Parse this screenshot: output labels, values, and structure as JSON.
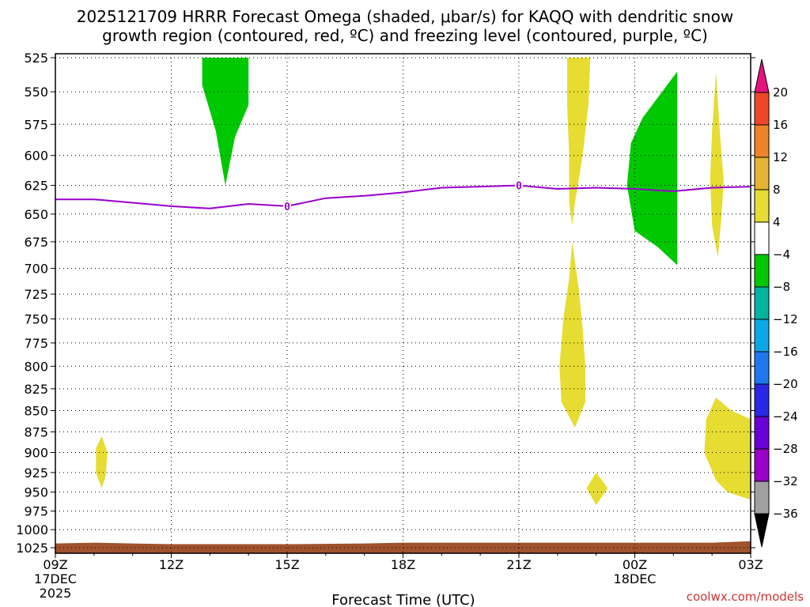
{
  "chart_data": {
    "type": "heatmap",
    "title_line1": "2025121709 HRRR Forecast Omega (shaded, μbar/s) for KAQQ with dendritic snow",
    "title_line2": "growth region (contoured, red, ºC) and freezing level (contoured, purple, ºC)",
    "xlabel": "Forecast Time (UTC)",
    "credit": "coolwx.com/models",
    "x_range_hours": [
      9,
      27
    ],
    "y_range_hpa": [
      525,
      1025
    ],
    "grid": true,
    "x_ticks": [
      {
        "hour": 9,
        "label": "09Z",
        "date": "17DEC",
        "year": "2025"
      },
      {
        "hour": 12,
        "label": "12Z",
        "date": "",
        "year": ""
      },
      {
        "hour": 15,
        "label": "15Z",
        "date": "",
        "year": ""
      },
      {
        "hour": 18,
        "label": "18Z",
        "date": "",
        "year": ""
      },
      {
        "hour": 21,
        "label": "21Z",
        "date": "",
        "year": ""
      },
      {
        "hour": 24,
        "label": "00Z",
        "date": "18DEC",
        "year": ""
      },
      {
        "hour": 27,
        "label": "03Z",
        "date": "",
        "year": ""
      }
    ],
    "y_ticks": [
      {
        "p": 525,
        "label": "525"
      },
      {
        "p": 550,
        "label": "550"
      },
      {
        "p": 575,
        "label": "575"
      },
      {
        "p": 600,
        "label": "600"
      },
      {
        "p": 625,
        "label": "625"
      },
      {
        "p": 650,
        "label": "650"
      },
      {
        "p": 675,
        "label": "675"
      },
      {
        "p": 700,
        "label": "700"
      },
      {
        "p": 725,
        "label": "725"
      },
      {
        "p": 750,
        "label": "750"
      },
      {
        "p": 775,
        "label": "775"
      },
      {
        "p": 800,
        "label": "800"
      },
      {
        "p": 825,
        "label": "825"
      },
      {
        "p": 850,
        "label": "850"
      },
      {
        "p": 875,
        "label": "875"
      },
      {
        "p": 900,
        "label": "900"
      },
      {
        "p": 925,
        "label": "925"
      },
      {
        "p": 950,
        "label": "950"
      },
      {
        "p": 975,
        "label": "975"
      },
      {
        "p": 1000,
        "label": "1000"
      },
      {
        "p": 1025,
        "label": "1025"
      }
    ],
    "colorbar": {
      "bins": [
        {
          "lo": -36,
          "hi": -32,
          "color": "#a0a0a0"
        },
        {
          "lo": -32,
          "hi": -28,
          "color": "#9a00c8"
        },
        {
          "lo": -28,
          "hi": -24,
          "color": "#6a00d8"
        },
        {
          "lo": -24,
          "hi": -20,
          "color": "#2828e6"
        },
        {
          "lo": -20,
          "hi": -16,
          "color": "#1e78f0"
        },
        {
          "lo": -16,
          "hi": -12,
          "color": "#0aa8e6"
        },
        {
          "lo": -12,
          "hi": -8,
          "color": "#00b4a0"
        },
        {
          "lo": -8,
          "hi": -4,
          "color": "#00c800"
        },
        {
          "lo": -4,
          "hi": 4,
          "color": "#ffffff"
        },
        {
          "lo": 4,
          "hi": 8,
          "color": "#e6dc32"
        },
        {
          "lo": 8,
          "hi": 12,
          "color": "#e6b432"
        },
        {
          "lo": 12,
          "hi": 16,
          "color": "#f08228"
        },
        {
          "lo": 16,
          "hi": 20,
          "color": "#f04628"
        }
      ],
      "over_color": "#e6147a",
      "under_color": "#000000",
      "tick_labels": [
        "20",
        "16",
        "12",
        "8",
        "4",
        "−4",
        "−8",
        "−12",
        "−16",
        "−20",
        "−24",
        "−28",
        "−32",
        "−36"
      ]
    },
    "omega_regions": [
      {
        "name": "green-14z-upper",
        "value_range": "-8 to -4",
        "color": "#00c800",
        "points": [
          [
            12.8,
            525
          ],
          [
            14.0,
            525
          ],
          [
            14.0,
            560
          ],
          [
            13.65,
            585
          ],
          [
            13.4,
            625
          ],
          [
            13.15,
            580
          ],
          [
            12.8,
            545
          ]
        ]
      },
      {
        "name": "yellow-22z-upper",
        "value_range": "4 to 8",
        "color": "#e6dc32",
        "points": [
          [
            22.25,
            525
          ],
          [
            22.85,
            525
          ],
          [
            22.8,
            560
          ],
          [
            22.65,
            600
          ],
          [
            22.45,
            640
          ],
          [
            22.38,
            660
          ],
          [
            22.3,
            640
          ],
          [
            22.3,
            600
          ],
          [
            22.25,
            560
          ]
        ]
      },
      {
        "name": "yellow-22z-lower",
        "value_range": "4 to 8",
        "color": "#e6dc32",
        "points": [
          [
            22.38,
            675
          ],
          [
            22.55,
            720
          ],
          [
            22.65,
            760
          ],
          [
            22.72,
            800
          ],
          [
            22.72,
            840
          ],
          [
            22.45,
            870
          ],
          [
            22.1,
            840
          ],
          [
            22.05,
            800
          ],
          [
            22.15,
            750
          ],
          [
            22.3,
            710
          ]
        ]
      },
      {
        "name": "green-00z",
        "value_range": "-8 to -4",
        "color": "#00c800",
        "points": [
          [
            25.1,
            535
          ],
          [
            25.1,
            580
          ],
          [
            25.1,
            640
          ],
          [
            25.1,
            697
          ],
          [
            24.6,
            680
          ],
          [
            24.0,
            665
          ],
          [
            23.8,
            625
          ],
          [
            23.9,
            590
          ],
          [
            24.2,
            570
          ]
        ]
      },
      {
        "name": "yellow-02z-upper",
        "value_range": "4 to 8",
        "color": "#e6dc32",
        "points": [
          [
            26.1,
            535
          ],
          [
            26.2,
            580
          ],
          [
            26.3,
            620
          ],
          [
            26.25,
            650
          ],
          [
            26.15,
            690
          ],
          [
            26.0,
            660
          ],
          [
            25.95,
            620
          ],
          [
            26.0,
            580
          ]
        ]
      },
      {
        "name": "yellow-10z",
        "value_range": "4 to 8",
        "color": "#e6dc32",
        "points": [
          [
            10.2,
            880
          ],
          [
            10.35,
            900
          ],
          [
            10.3,
            930
          ],
          [
            10.2,
            945
          ],
          [
            10.05,
            925
          ],
          [
            10.05,
            895
          ]
        ]
      },
      {
        "name": "yellow-2230z",
        "value_range": "4 to 8",
        "color": "#e6dc32",
        "points": [
          [
            23.0,
            925
          ],
          [
            23.3,
            945
          ],
          [
            23.0,
            967
          ],
          [
            22.75,
            945
          ]
        ]
      },
      {
        "name": "yellow-03z-lower",
        "value_range": "4 to 8",
        "color": "#e6dc32",
        "points": [
          [
            26.1,
            835
          ],
          [
            26.5,
            850
          ],
          [
            27.0,
            860
          ],
          [
            27.0,
            960
          ],
          [
            26.4,
            950
          ],
          [
            26.1,
            935
          ],
          [
            25.8,
            900
          ],
          [
            25.85,
            860
          ]
        ]
      }
    ],
    "freezing_level_0C": {
      "label": "0",
      "points": [
        [
          9,
          637
        ],
        [
          10,
          637
        ],
        [
          11,
          640
        ],
        [
          12,
          643
        ],
        [
          13,
          645
        ],
        [
          14,
          641
        ],
        [
          15,
          643
        ],
        [
          16,
          636
        ],
        [
          17,
          634
        ],
        [
          18,
          631
        ],
        [
          19,
          627
        ],
        [
          20,
          626
        ],
        [
          21,
          625
        ],
        [
          22,
          628
        ],
        [
          23,
          627
        ],
        [
          24,
          628
        ],
        [
          25,
          630
        ],
        [
          26,
          627
        ],
        [
          27,
          626
        ]
      ],
      "label_positions": [
        [
          15,
          643
        ],
        [
          21,
          625
        ]
      ]
    },
    "terrain": {
      "color": "#a0522d",
      "points": [
        [
          9,
          1019
        ],
        [
          10,
          1018
        ],
        [
          11,
          1019
        ],
        [
          12,
          1020
        ],
        [
          15,
          1020
        ],
        [
          17,
          1019
        ],
        [
          18,
          1018
        ],
        [
          21,
          1018
        ],
        [
          24,
          1018
        ],
        [
          26,
          1018
        ],
        [
          27,
          1016
        ]
      ]
    }
  }
}
